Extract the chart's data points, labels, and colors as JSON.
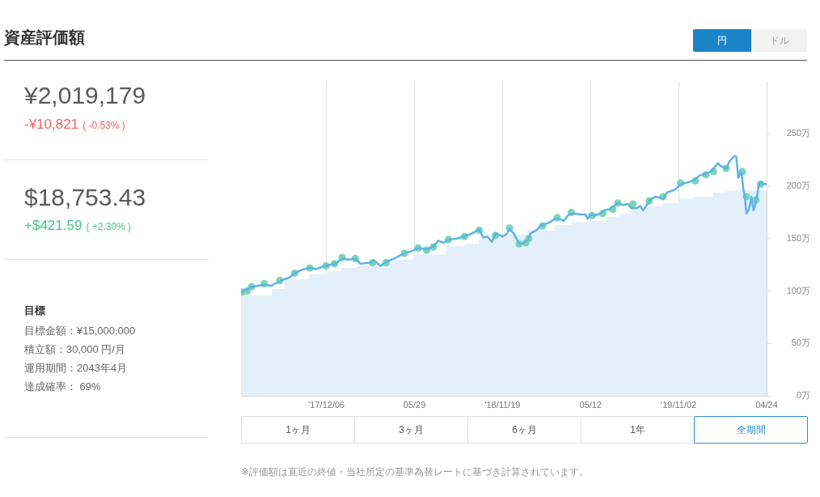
{
  "chart_data": [
    {
      "type": "other",
      "title": "資産評価額",
      "annotations": [
        "¥2,019,179",
        "-¥10,821",
        "( -0.53% )",
        "$18,753.43",
        "+$421.59",
        "( +2.30% )",
        "目標",
        "目標金額：¥15,000,000",
        "積立額：30,000 円/月",
        "運用期間：2043年4月",
        "達成確率： 69%"
      ]
    },
    {
      "type": "line",
      "annotations": [
        "円",
        "ドル",
        "1ヶ月",
        "3ヶ月",
        "6ヶ月",
        "1年",
        "全期間",
        "※評価額は直近の終値・当社所定の基準為替レートに基づき計算されています。"
      ],
      "xlim": [
        "2017-06-20",
        "2020-04-24"
      ],
      "xticks": [
        {
          "value": "2017-12-06",
          "label": "'17/12/06"
        },
        {
          "value": "2018-05-29",
          "label": "05/29"
        },
        {
          "value": "2018-11-19",
          "label": "'18/11/19"
        },
        {
          "value": "2019-05-12",
          "label": "05/12"
        },
        {
          "value": "2019-11-02",
          "label": "'19/11/02"
        },
        {
          "value": "2020-04-24",
          "label": "04/24"
        }
      ],
      "ylim": [
        0,
        300
      ],
      "yticks": [
        {
          "value": 0,
          "label": "0万"
        },
        {
          "value": 50,
          "label": "50万"
        },
        {
          "value": 100,
          "label": "100万"
        },
        {
          "value": 150,
          "label": "150万"
        },
        {
          "value": 200,
          "label": "200万"
        },
        {
          "value": 250,
          "label": "250万"
        }
      ],
      "grid": "x",
      "series": [
        {
          "type": "area",
          "color": "#e4f0f9",
          "x": [
            "2017-06-20",
            "2017-08-20",
            "2017-08-20",
            "2017-09-14",
            "2017-09-14",
            "2017-11-01",
            "2017-11-01",
            "2017-12-07",
            "2017-12-07",
            "2018-01-04",
            "2018-01-04",
            "2018-02-05",
            "2018-02-05",
            "2018-03-24",
            "2018-03-24",
            "2018-04-22",
            "2018-04-22",
            "2018-05-27",
            "2018-05-27",
            "2018-07-31",
            "2018-07-31",
            "2018-09-05",
            "2018-09-05",
            "2018-10-03",
            "2018-10-03",
            "2018-11-20",
            "2018-11-20",
            "2019-01-07",
            "2019-01-07",
            "2019-03-03",
            "2019-03-03",
            "2019-04-04",
            "2019-04-04",
            "2019-05-11",
            "2019-05-11",
            "2019-06-12",
            "2019-06-12",
            "2019-07-09",
            "2019-07-09",
            "2019-07-30",
            "2019-07-30",
            "2019-09-03",
            "2019-09-03",
            "2019-10-02",
            "2019-10-02",
            "2019-11-03",
            "2019-11-03",
            "2019-12-01",
            "2019-12-01",
            "2020-01-09",
            "2020-01-09",
            "2020-02-03",
            "2020-02-03",
            "2020-04-24"
          ],
          "values": [
            96,
            96,
            102,
            102,
            111,
            111,
            116,
            116,
            119,
            119,
            122,
            122,
            124,
            124,
            127,
            127,
            130,
            130,
            135,
            135,
            143,
            143,
            145,
            145,
            149,
            149,
            154,
            154,
            158,
            158,
            163,
            163,
            166,
            166,
            167,
            167,
            171,
            171,
            174,
            174,
            178,
            178,
            181,
            181,
            184,
            184,
            188,
            188,
            190,
            190,
            194,
            194,
            196,
            196
          ]
        },
        {
          "type": "scatter",
          "color": "#7ad6b4",
          "marker": "circle",
          "x": [
            "2017-06-22",
            "2017-07-02",
            "2017-07-11",
            "2017-08-05",
            "2017-09-05",
            "2017-10-04",
            "2017-11-03",
            "2017-12-05",
            "2017-12-22",
            "2018-01-06",
            "2018-02-01",
            "2018-03-07",
            "2018-04-03",
            "2018-05-09",
            "2018-06-05",
            "2018-06-22",
            "2018-07-05",
            "2018-08-04",
            "2018-09-05",
            "2018-10-04",
            "2018-11-05",
            "2018-12-03",
            "2018-12-22",
            "2019-01-04",
            "2019-01-10",
            "2019-02-06",
            "2019-03-07",
            "2019-04-04",
            "2019-05-15",
            "2019-06-05",
            "2019-06-25",
            "2019-07-05",
            "2019-08-04",
            "2019-09-05",
            "2019-10-02",
            "2019-11-06",
            "2019-12-05",
            "2019-12-26",
            "2020-01-10",
            "2020-02-04",
            "2020-03-07",
            "2020-03-15",
            "2020-04-03",
            "2020-04-12"
          ],
          "values": [
            99,
            100,
            104,
            107,
            110,
            117,
            122,
            124,
            126,
            132,
            131,
            127,
            127,
            136,
            141,
            139,
            142,
            149,
            152,
            158,
            153,
            160,
            145,
            146,
            150,
            162,
            170,
            175,
            172,
            174,
            178,
            184,
            183,
            186,
            190,
            203,
            205,
            211,
            214,
            217,
            214,
            190,
            187,
            202
          ]
        },
        {
          "type": "line",
          "color": "#5cb4e8",
          "marker": "none",
          "x": [
            "2017-06-20",
            "2017-07-05",
            "2017-07-12",
            "2017-08-05",
            "2017-08-18",
            "2017-09-07",
            "2017-09-24",
            "2017-10-04",
            "2017-10-17",
            "2017-11-03",
            "2017-11-16",
            "2017-12-03",
            "2017-12-23",
            "2018-01-06",
            "2018-01-19",
            "2018-02-01",
            "2018-02-11",
            "2018-03-03",
            "2018-03-10",
            "2018-03-23",
            "2018-04-03",
            "2018-04-19",
            "2018-05-09",
            "2018-05-23",
            "2018-06-05",
            "2018-06-22",
            "2018-07-05",
            "2018-07-15",
            "2018-07-25",
            "2018-08-04",
            "2018-08-21",
            "2018-09-03",
            "2018-09-20",
            "2018-10-04",
            "2018-10-12",
            "2018-10-20",
            "2018-10-29",
            "2018-11-06",
            "2018-11-19",
            "2018-11-26",
            "2018-12-03",
            "2018-12-11",
            "2018-12-22",
            "2019-01-02",
            "2019-01-09",
            "2019-01-13",
            "2019-01-25",
            "2019-02-04",
            "2019-02-18",
            "2019-03-03",
            "2019-03-10",
            "2019-03-20",
            "2019-03-30",
            "2019-04-09",
            "2019-04-22",
            "2019-05-02",
            "2019-05-06",
            "2019-05-12",
            "2019-05-19",
            "2019-06-02",
            "2019-06-08",
            "2019-06-18",
            "2019-06-28",
            "2019-07-05",
            "2019-07-15",
            "2019-07-25",
            "2019-08-01",
            "2019-08-11",
            "2019-08-18",
            "2019-08-24",
            "2019-09-07",
            "2019-09-17",
            "2019-10-03",
            "2019-10-10",
            "2019-10-27",
            "2019-11-06",
            "2019-11-23",
            "2019-12-03",
            "2019-12-13",
            "2019-12-26",
            "2020-01-05",
            "2020-01-19",
            "2020-01-25",
            "2020-02-04",
            "2020-02-11",
            "2020-02-21",
            "2020-02-24",
            "2020-02-28",
            "2020-03-05",
            "2020-03-09",
            "2020-03-12",
            "2020-03-15",
            "2020-03-19",
            "2020-03-22",
            "2020-03-25",
            "2020-03-29",
            "2020-04-01",
            "2020-04-05",
            "2020-04-08",
            "2020-04-12",
            "2020-04-18",
            "2020-04-24"
          ],
          "values": [
            99,
            102,
            104,
            106,
            105,
            110,
            113,
            117,
            120,
            122,
            121,
            124,
            126,
            131,
            130,
            131,
            126,
            127,
            129,
            124,
            128,
            131,
            136,
            138,
            141,
            140,
            142,
            148,
            146,
            149,
            150,
            152,
            155,
            159,
            151,
            152,
            147,
            155,
            152,
            154,
            159,
            155,
            145,
            146,
            150,
            155,
            158,
            163,
            165,
            169,
            169,
            167,
            173,
            174,
            173,
            173,
            169,
            173,
            172,
            174,
            177,
            178,
            181,
            184,
            182,
            183,
            179,
            179,
            181,
            177,
            187,
            190,
            188,
            194,
            197,
            202,
            204,
            206,
            210,
            212,
            214,
            222,
            219,
            217,
            224,
            229,
            228,
            208,
            214,
            197,
            190,
            174,
            177,
            182,
            190,
            177,
            181,
            190,
            200,
            204,
            202,
            202
          ]
        }
      ]
    }
  ]
}
